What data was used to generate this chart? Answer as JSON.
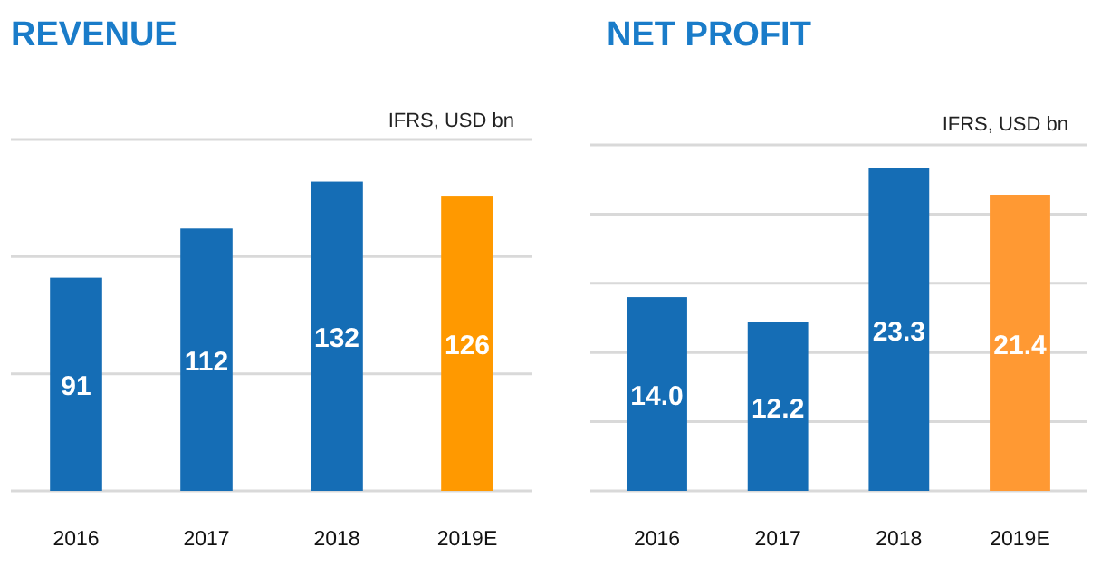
{
  "chart_data": [
    {
      "type": "bar",
      "title": "REVENUE",
      "subtitle": "IFRS, USD bn",
      "categories": [
        "2016",
        "2017",
        "2018",
        "2019E"
      ],
      "values": [
        91,
        112,
        132,
        126
      ],
      "colors": [
        "#156db5",
        "#156db5",
        "#156db5",
        "#ff9900"
      ],
      "data_labels": true,
      "ylim": [
        0,
        150
      ],
      "yticks": [
        {
          "value": 0,
          "label": null
        },
        {
          "value": 50,
          "label": null
        },
        {
          "value": 100,
          "label": null
        },
        {
          "value": 150,
          "label": null
        }
      ],
      "grid": "y",
      "tick_labels": "x"
    },
    {
      "type": "bar",
      "title": "NET PROFIT",
      "subtitle": "IFRS, USD bn",
      "categories": [
        "2016",
        "2017",
        "2018",
        "2019E"
      ],
      "values": [
        14.0,
        12.2,
        23.3,
        21.4
      ],
      "value_labels": [
        "14.0",
        "12.2",
        "23.3",
        "21.4"
      ],
      "colors": [
        "#156db5",
        "#156db5",
        "#156db5",
        "#ff9933"
      ],
      "ylim": [
        0,
        25
      ],
      "yticks": [
        {
          "value": 0,
          "label": null
        },
        {
          "value": 5,
          "label": null
        },
        {
          "value": 10,
          "label": null
        },
        {
          "value": 15,
          "label": null
        },
        {
          "value": 20,
          "label": null
        },
        {
          "value": 25,
          "label": null
        }
      ],
      "grid": "y",
      "tick_labels": "x"
    }
  ]
}
